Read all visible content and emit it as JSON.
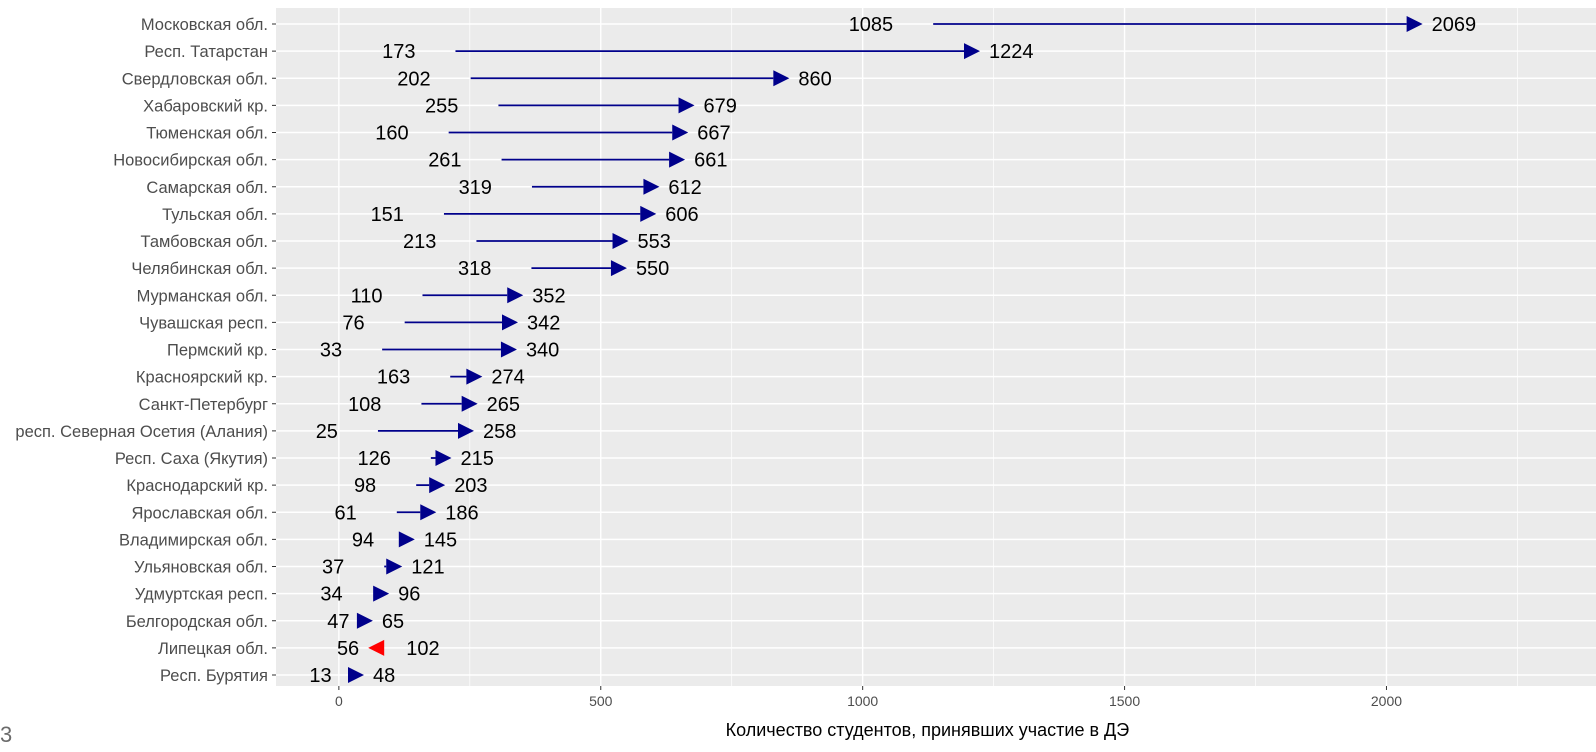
{
  "chart_data": {
    "type": "arrow",
    "xlabel": "Количество студентов, принявших участие в ДЭ",
    "ylabel": "",
    "xlim": [
      -120,
      2400
    ],
    "xticks": [
      0,
      500,
      1000,
      1500,
      2000
    ],
    "grid": true,
    "categories": [
      "Московская обл.",
      "Респ. Татарстан",
      "Свердловская обл.",
      "Хабаровский кр.",
      "Тюменская обл.",
      "Новосибирская обл.",
      "Самарская обл.",
      "Тульская обл.",
      "Тамбовская обл.",
      "Челябинская обл.",
      "Мурманская обл.",
      "Чувашская респ.",
      "Пермский кр.",
      "Красноярский кр.",
      "Санкт-Петербург",
      "респ. Северная Осетия (Алания)",
      "Респ. Саха (Якутия)",
      "Краснодарский кр.",
      "Ярославская обл.",
      "Владимирская обл.",
      "Ульяновская обл.",
      "Удмуртская респ.",
      "Белгородская обл.",
      "Липецкая обл.",
      "Респ. Бурятия"
    ],
    "series": [
      {
        "values": [
          1085,
          173,
          202,
          255,
          160,
          261,
          319,
          151,
          213,
          318,
          110,
          76,
          33,
          163,
          108,
          25,
          126,
          98,
          61,
          94,
          37,
          34,
          47,
          102,
          13
        ]
      },
      {
        "values": [
          2069,
          1224,
          860,
          679,
          667,
          661,
          612,
          606,
          553,
          550,
          352,
          342,
          340,
          274,
          265,
          258,
          215,
          203,
          186,
          145,
          121,
          96,
          65,
          56,
          48
        ]
      }
    ],
    "colors": {
      "increase": "#00008b",
      "decrease": "#ff0000",
      "panel": "#ebebeb",
      "grid": "#ffffff"
    }
  },
  "corner_mark": "3"
}
